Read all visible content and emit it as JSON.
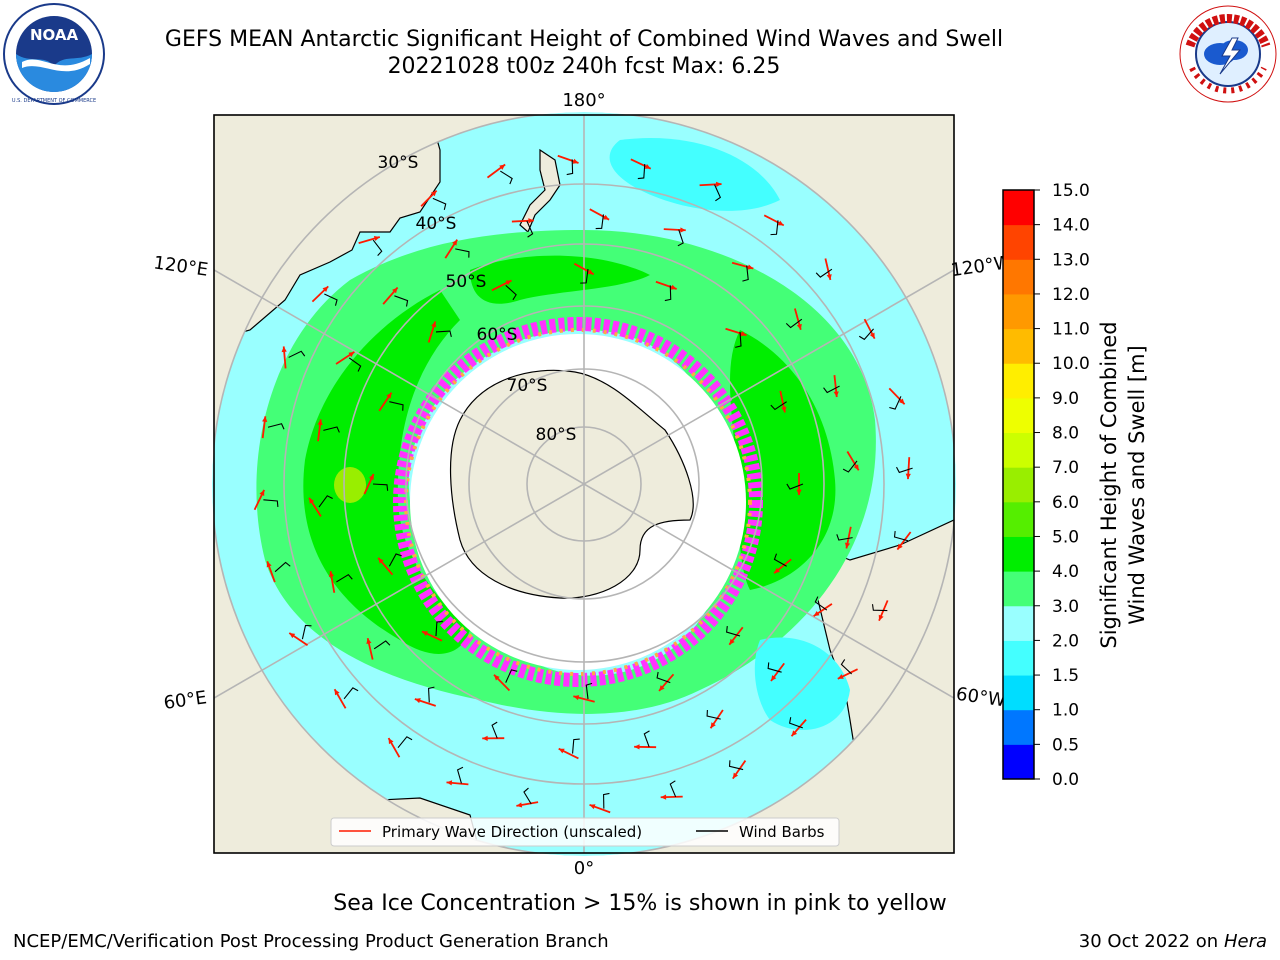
{
  "header": {
    "title_line1": "GEFS MEAN Antarctic Significant Height of Combined Wind Waves and Swell",
    "title_line2": "20221028 t00z 240h fcst   Max: 6.25"
  },
  "logos": {
    "left": "noaa-logo",
    "right": "nws-logo"
  },
  "map": {
    "projection": "south-polar-stereographic",
    "longitude_labels": [
      "180°",
      "120°E",
      "120°W",
      "60°E",
      "60°W",
      "0°"
    ],
    "latitude_labels": [
      "30°S",
      "40°S",
      "50°S",
      "60°S",
      "70°S",
      "80°S"
    ],
    "land_color": "#eeecdc",
    "ice_colors": [
      "#ff33ff",
      "#ff99dd",
      "#ffaa44",
      "#ffdd66"
    ],
    "arrow_color": "#ff1a00",
    "barb_color": "#000000"
  },
  "legend": {
    "primary_wave": "Primary Wave Direction (unscaled)",
    "wind_barbs": "Wind Barbs"
  },
  "colorbar": {
    "label_line1": "Significant Height of Combined",
    "label_line2": "Wind Waves and Swell [m]",
    "ticks": [
      "0.0",
      "0.5",
      "1.0",
      "1.5",
      "2.0",
      "3.0",
      "4.0",
      "5.0",
      "6.0",
      "7.0",
      "8.0",
      "9.0",
      "10.0",
      "11.0",
      "12.0",
      "13.0",
      "14.0",
      "15.0"
    ],
    "colors": [
      "#0000ff",
      "#0077ff",
      "#00ddff",
      "#44ffff",
      "#99ffff",
      "#44ff77",
      "#00ee00",
      "#55ee00",
      "#99ee00",
      "#ccff00",
      "#eeff00",
      "#ffee00",
      "#ffbb00",
      "#ff9900",
      "#ff7700",
      "#ff4400",
      "#ff0000"
    ]
  },
  "captions": {
    "ice_note": "Sea Ice Concentration > 15% is shown in pink to yellow",
    "footer_left": "NCEP/EMC/Verification Post Processing Product Generation Branch",
    "footer_date": "30 Oct 2022 on",
    "footer_host": "Hera"
  }
}
